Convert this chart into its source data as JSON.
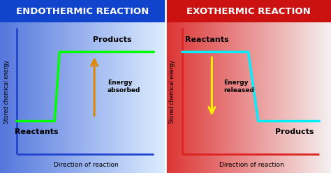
{
  "left_title": "ENDOTHERMIC REACTION",
  "right_title": "EXOTHERMIC REACTION",
  "left_bg_left": "#5577dd",
  "left_bg_right": "#ddeeff",
  "right_bg_left": "#dd3333",
  "right_bg_right": "#f5f0f0",
  "left_header_color": "#1144cc",
  "right_header_color": "#cc1111",
  "left_line_color": "#00ff00",
  "right_line_color": "#00eeff",
  "left_axis_color": "#2244cc",
  "right_axis_color": "#dd2222",
  "left_arrow_color": "#dd8800",
  "right_arrow_color": "#ffee00",
  "left_reactants_label": "Reactants",
  "left_products_label": "Products",
  "left_energy_label": "Energy\nabsorbed",
  "right_reactants_label": "Reactants",
  "right_products_label": "Products",
  "right_energy_label": "Energy\nreleased",
  "ylabel": "Stored chemical energy",
  "xlabel": "Direction of reaction",
  "title_fontsize": 9.5,
  "label_fontsize": 8.0,
  "axis_label_fontsize": 6.5,
  "ylabel_fontsize": 5.5
}
